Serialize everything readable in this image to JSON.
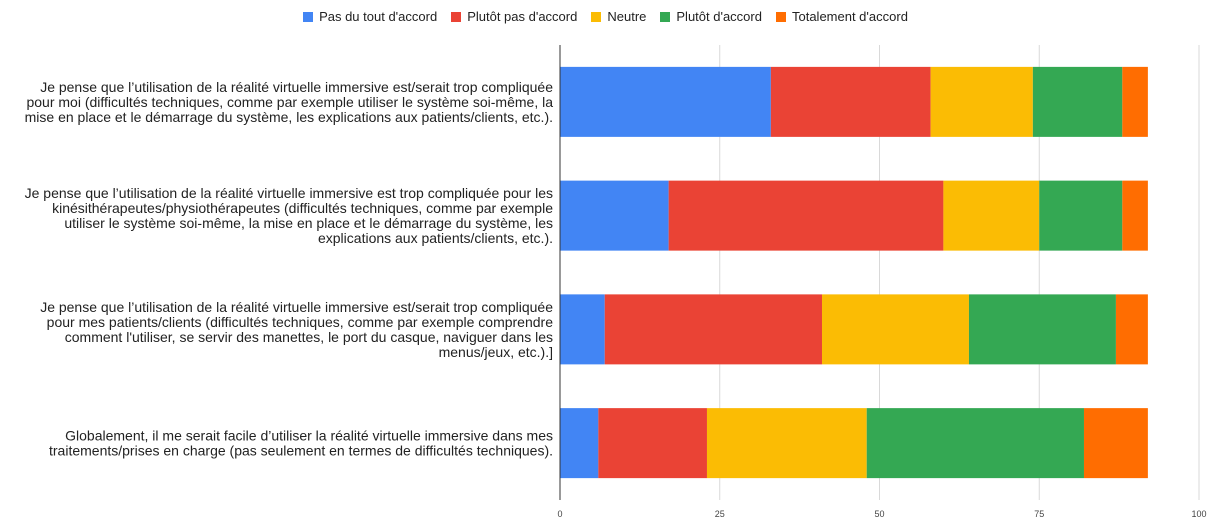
{
  "chart_data": {
    "type": "bar",
    "orientation": "horizontal",
    "stacked": true,
    "categories": [
      "Je pense que l’utilisation de la réalité virtuelle immersive est/serait trop compliquée pour moi (difficultés techniques, comme par exemple utiliser le système soi-même, la mise en place et le démarrage du système, les explications aux patients/clients, etc.).",
      "Je pense que l’utilisation de la réalité virtuelle immersive est trop compliquée pour les kinésithérapeutes/physiothérapeutes (difficultés techniques, comme par exemple utiliser le système soi-même, la mise en place et le démarrage du système, les explications aux patients/clients, etc.).",
      "Je pense que l’utilisation de la réalité virtuelle immersive est/serait trop compliquée pour mes patients/clients (difficultés techniques, comme par exemple comprendre comment l'utiliser, se servir des manettes, le port du casque, naviguer dans les menus/jeux, etc.).]",
      "Globalement, il me serait facile d’utiliser la réalité virtuelle immersive dans mes traitements/prises en charge (pas seulement en termes de difficultés techniques)."
    ],
    "category_lines": [
      [
        "Je pense que l’utilisation de la réalité virtuelle immersive est/serait trop compliquée",
        "pour moi (difficultés techniques, comme par exemple utiliser le système soi-même, la",
        "mise en place et le démarrage du système, les explications aux patients/clients, etc.)."
      ],
      [
        "Je pense que l’utilisation de la réalité virtuelle immersive est trop compliquée pour les",
        "kinésithérapeutes/physiothérapeutes (difficultés techniques, comme par exemple",
        "utiliser le système soi-même, la mise en place et le démarrage du système, les",
        "explications aux patients/clients, etc.)."
      ],
      [
        "Je pense que l’utilisation de la réalité virtuelle immersive est/serait trop compliquée",
        "pour mes patients/clients (difficultés techniques, comme par exemple comprendre",
        "comment l'utiliser, se servir des manettes, le port du casque, naviguer dans les",
        "menus/jeux, etc.).]"
      ],
      [
        "Globalement, il me serait facile d’utiliser la réalité virtuelle immersive dans mes",
        "traitements/prises en charge (pas seulement en termes de difficultés techniques)."
      ]
    ],
    "series": [
      {
        "name": "Pas du tout d'accord",
        "color": "#4285F4",
        "values": [
          33,
          17,
          7,
          6
        ]
      },
      {
        "name": "Plutôt pas d'accord",
        "color": "#EA4335",
        "values": [
          25,
          43,
          34,
          17
        ]
      },
      {
        "name": "Neutre",
        "color": "#FBBC04",
        "values": [
          16,
          15,
          23,
          25
        ]
      },
      {
        "name": "Plutôt d'accord",
        "color": "#34A853",
        "values": [
          14,
          13,
          23,
          34
        ]
      },
      {
        "name": "Totalement d'accord",
        "color": "#FF6D01",
        "values": [
          4,
          4,
          5,
          10
        ]
      }
    ],
    "xlim": [
      0,
      100
    ],
    "xticks": [
      0,
      25,
      50,
      75,
      100
    ],
    "grid": true,
    "legend_position": "top-center",
    "title": "",
    "xlabel": "",
    "ylabel": ""
  }
}
